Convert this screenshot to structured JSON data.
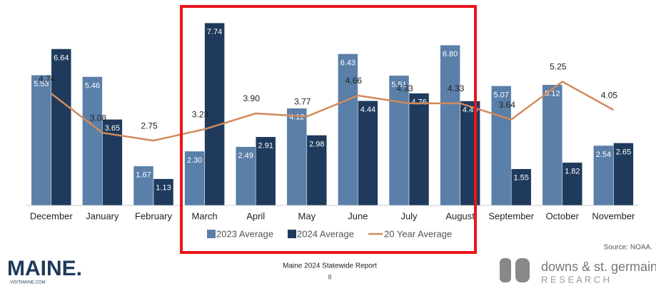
{
  "chart_data": {
    "type": "bar",
    "categories": [
      "December",
      "January",
      "February",
      "March",
      "April",
      "May",
      "June",
      "July",
      "August",
      "September",
      "October",
      "November"
    ],
    "series": [
      {
        "name": "2023 Average",
        "color": "#5a7fa8",
        "values": [
          5.53,
          5.46,
          1.67,
          2.3,
          2.49,
          4.12,
          6.43,
          5.51,
          6.8,
          5.07,
          5.12,
          2.54
        ],
        "value_labels": [
          "5.53",
          "5.46",
          "1.67",
          "2.30",
          "2.49",
          "4.12",
          "6.43",
          "5.51",
          "6.80",
          "5.07",
          "5.12",
          "2.54"
        ]
      },
      {
        "name": "2024 Average",
        "color": "#1f3a5c",
        "values": [
          6.64,
          3.65,
          1.13,
          7.74,
          2.91,
          2.98,
          4.44,
          4.76,
          4.43,
          1.55,
          1.82,
          2.65
        ],
        "value_labels": [
          "6.64",
          "3.65",
          "1.13",
          "7.74",
          "2.91",
          "2.98",
          "4.44",
          "4.76",
          "4.43",
          "1.55",
          "1.82",
          "2.65"
        ]
      },
      {
        "name": "20 Year Average",
        "color": "#d18a5c",
        "type": "line",
        "values": [
          4.74,
          3.08,
          2.75,
          3.23,
          3.9,
          3.77,
          4.66,
          4.33,
          4.33,
          3.64,
          5.25,
          4.05
        ],
        "value_labels": [
          "4.74",
          "3.08",
          "2.75",
          "3.23",
          "3.90",
          "3.77",
          "4.66",
          "4.33",
          "4.33",
          "3.64",
          "5.25",
          "4.05"
        ]
      }
    ],
    "ylim": [
      0,
      8.5
    ],
    "legend": "bottom"
  },
  "source": "Source: NOAA.",
  "footer": {
    "logo": "MAINE.",
    "logo_sub": "VISITMAINE.COM",
    "report": "Maine 2024 Statewide Report",
    "page": "8",
    "brand": "downs & st. germain",
    "brand_sub": "R E S E A R C H"
  }
}
